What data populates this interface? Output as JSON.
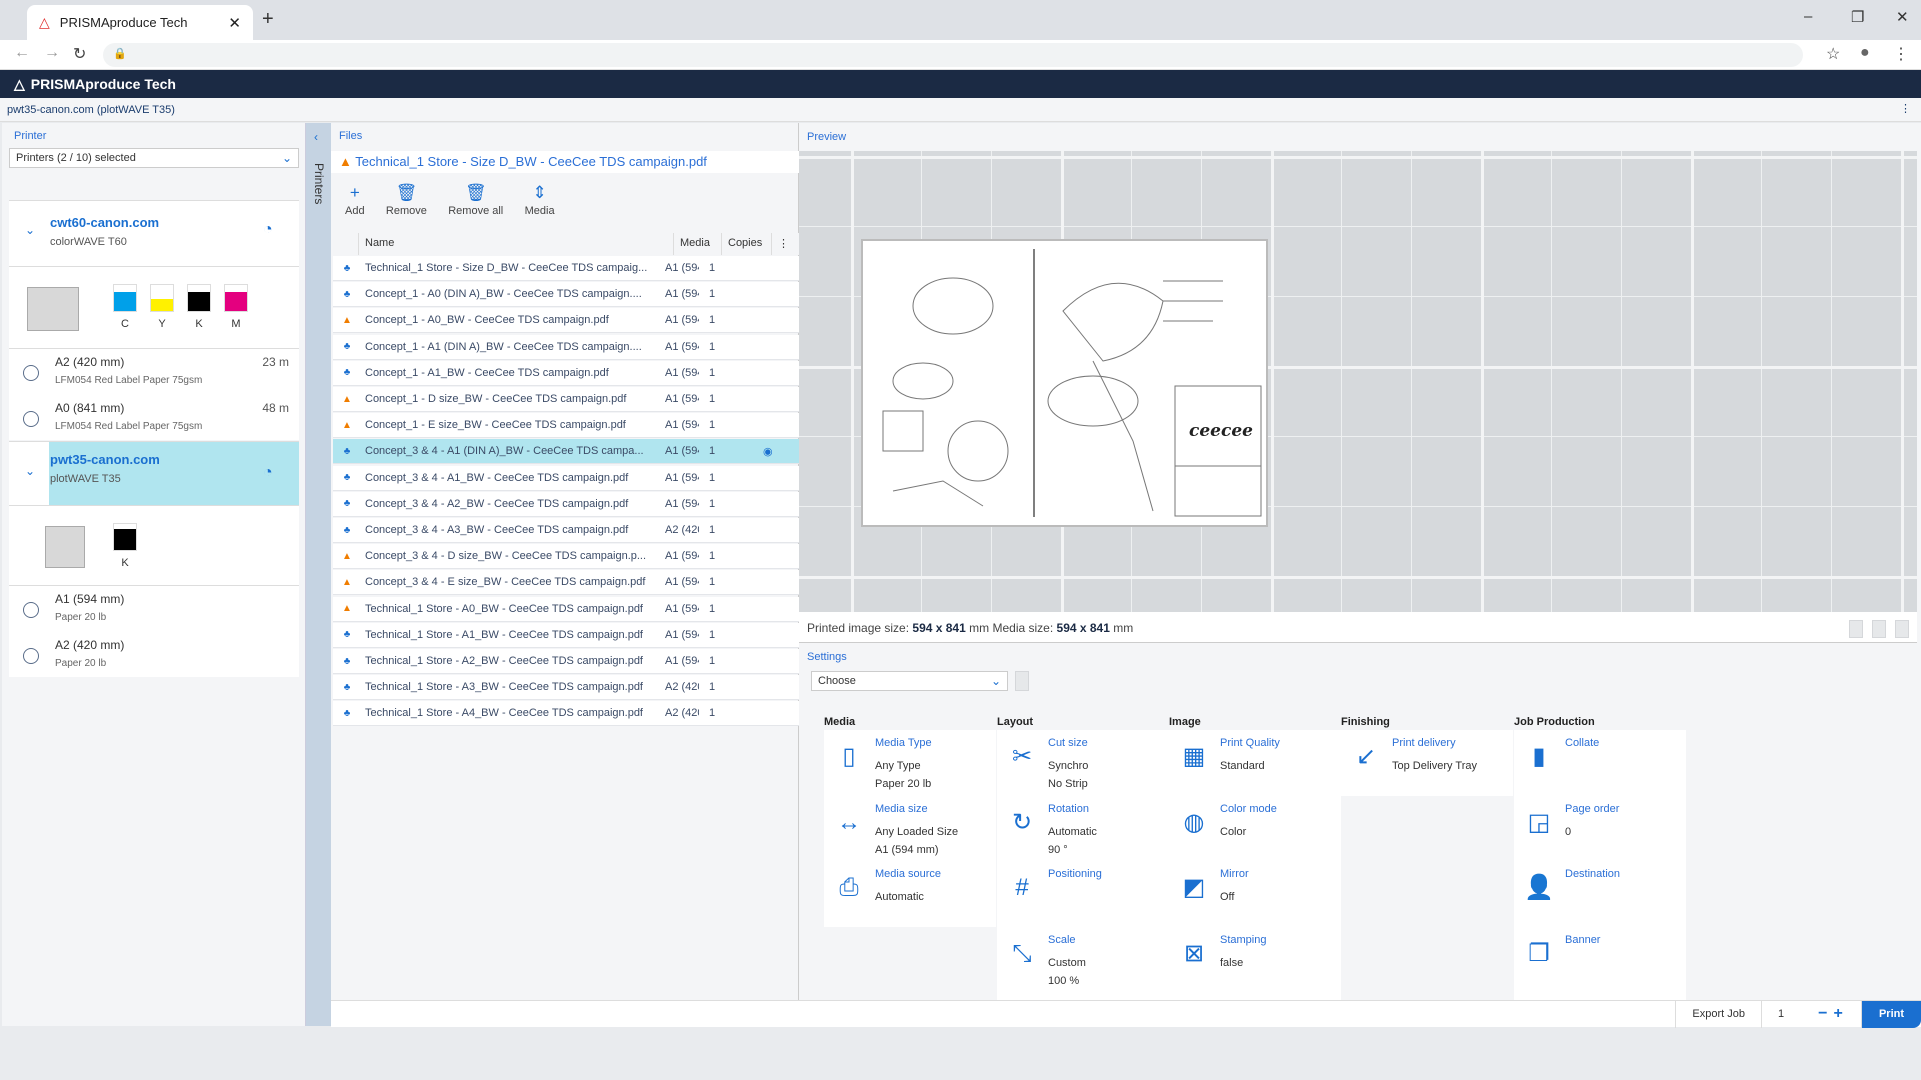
{
  "browser": {
    "tab_title": "PRISMAproduce Tech",
    "close": "✕",
    "new_tab": "+",
    "back": "←",
    "forward": "→",
    "reload": "↻",
    "lock": "🔒",
    "star": "☆",
    "menu": "⋮",
    "minimize": "–",
    "restore": "❐",
    "close_window": "✕"
  },
  "app": {
    "title": "PRISMAproduce Tech",
    "context": "pwt35-canon.com (plotWAVE T35)",
    "more": "⋮"
  },
  "printer_panel": {
    "label": "Printer",
    "selector": "Printers (2 / 10) selected",
    "tab": "Printers",
    "printers": [
      {
        "name": "cwt60-canon.com",
        "model": "colorWAVE T60",
        "inks": [
          {
            "label": "C",
            "color": "#00a0e9",
            "level": 0.75
          },
          {
            "label": "Y",
            "color": "#fff100",
            "level": 0.45
          },
          {
            "label": "K",
            "color": "#000000",
            "level": 0.75
          },
          {
            "label": "M",
            "color": "#e4007f",
            "level": 0.75
          }
        ],
        "media": [
          {
            "size": "A2 (420 mm)",
            "type": "LFM054 Red Label Paper 75gsm",
            "length": "23 m"
          },
          {
            "size": "A0 (841 mm)",
            "type": "LFM054 Red Label Paper 75gsm",
            "length": "48 m"
          }
        ]
      },
      {
        "name": "pwt35-canon.com",
        "model": "plotWAVE T35",
        "selected": true,
        "inks": [
          {
            "label": "K",
            "color": "#000000",
            "level": 0.8
          }
        ],
        "media": [
          {
            "size": "A1 (594 mm)",
            "type": "Paper 20 lb",
            "length": ""
          },
          {
            "size": "A2 (420 mm)",
            "type": "Paper 20 lb",
            "length": ""
          }
        ]
      }
    ]
  },
  "files": {
    "tab": "Files",
    "current_file": "Technical_1 Store - Size D_BW - CeeCee TDS campaign.pdf",
    "toolbar": {
      "add": "Add",
      "remove": "Remove",
      "remove_all": "Remove all",
      "media": "Media"
    },
    "columns": {
      "name": "Name",
      "media": "Media",
      "copies": "Copies",
      "more": "⋮"
    },
    "rows": [
      {
        "status": "job",
        "name": "Technical_1 Store - Size D_BW - CeeCee TDS campaig...",
        "media": "A1 (594",
        "copies": "1"
      },
      {
        "status": "job",
        "name": "Concept_1 - A0 (DIN A)_BW - CeeCee TDS campaign....",
        "media": "A1 (594",
        "copies": "1"
      },
      {
        "status": "warn",
        "name": "Concept_1 - A0_BW - CeeCee TDS campaign.pdf",
        "media": "A1 (594",
        "copies": "1"
      },
      {
        "status": "job",
        "name": "Concept_1 - A1 (DIN A)_BW - CeeCee TDS campaign....",
        "media": "A1 (594",
        "copies": "1"
      },
      {
        "status": "job",
        "name": "Concept_1 - A1_BW - CeeCee TDS campaign.pdf",
        "media": "A1 (594",
        "copies": "1"
      },
      {
        "status": "warn",
        "name": "Concept_1 - D size_BW - CeeCee TDS campaign.pdf",
        "media": "A1 (594",
        "copies": "1"
      },
      {
        "status": "warn",
        "name": "Concept_1 - E size_BW - CeeCee TDS campaign.pdf",
        "media": "A1 (594",
        "copies": "1"
      },
      {
        "status": "job",
        "name": "Concept_3 & 4 - A1 (DIN A)_BW - CeeCee TDS campa...",
        "media": "A1 (594",
        "copies": "1",
        "selected": true
      },
      {
        "status": "job",
        "name": "Concept_3 & 4 - A1_BW - CeeCee TDS campaign.pdf",
        "media": "A1 (594",
        "copies": "1"
      },
      {
        "status": "job",
        "name": "Concept_3 & 4 - A2_BW - CeeCee TDS campaign.pdf",
        "media": "A1 (594",
        "copies": "1"
      },
      {
        "status": "job",
        "name": "Concept_3 & 4 - A3_BW - CeeCee TDS campaign.pdf",
        "media": "A2 (420",
        "copies": "1"
      },
      {
        "status": "warn",
        "name": "Concept_3 & 4 - D size_BW - CeeCee TDS campaign.p...",
        "media": "A1 (594",
        "copies": "1"
      },
      {
        "status": "warn",
        "name": "Concept_3 & 4 - E size_BW - CeeCee TDS campaign.pdf",
        "media": "A1 (594",
        "copies": "1"
      },
      {
        "status": "warn",
        "name": "Technical_1 Store - A0_BW - CeeCee TDS campaign.pdf",
        "media": "A1 (594",
        "copies": "1"
      },
      {
        "status": "job",
        "name": "Technical_1 Store - A1_BW - CeeCee TDS campaign.pdf",
        "media": "A1 (594",
        "copies": "1"
      },
      {
        "status": "job",
        "name": "Technical_1 Store - A2_BW - CeeCee TDS campaign.pdf",
        "media": "A1 (594",
        "copies": "1"
      },
      {
        "status": "job",
        "name": "Technical_1 Store - A3_BW - CeeCee TDS campaign.pdf",
        "media": "A2 (420",
        "copies": "1"
      },
      {
        "status": "job",
        "name": "Technical_1 Store - A4_BW - CeeCee TDS campaign.pdf",
        "media": "A2 (420",
        "copies": "1"
      }
    ]
  },
  "preview": {
    "label": "Preview",
    "logo_text": "ceecee",
    "printed_label": "Printed image size:",
    "printed_value": "594 x 841",
    "unit1": "mm",
    "media_label": "Media size:",
    "media_value": "594 x 841",
    "unit2": "mm"
  },
  "settings": {
    "label": "Settings",
    "preset": "Choose",
    "groups": [
      {
        "title": "Media",
        "items": [
          {
            "icon": "media-type-icon",
            "g": "▯",
            "title": "Media Type",
            "v1": "Any Type",
            "v2": "Paper 20 lb"
          },
          {
            "icon": "media-size-icon",
            "g": "↔",
            "title": "Media size",
            "v1": "Any Loaded Size",
            "v2": "A1 (594 mm)"
          },
          {
            "icon": "media-source-icon",
            "g": "⎙",
            "title": "Media source",
            "v1": "Automatic",
            "v2": ""
          }
        ]
      },
      {
        "title": "Layout",
        "items": [
          {
            "icon": "cut-size-icon",
            "g": "✂",
            "title": "Cut size",
            "v1": "Synchro",
            "v2": "No Strip"
          },
          {
            "icon": "rotation-icon",
            "g": "↻",
            "title": "Rotation",
            "v1": "Automatic",
            "v2": "90 °"
          },
          {
            "icon": "positioning-icon",
            "g": "#",
            "title": "Positioning",
            "v1": "",
            "v2": ""
          },
          {
            "icon": "scale-icon",
            "g": "⤡",
            "title": "Scale",
            "v1": "Custom",
            "v2": "100 %"
          }
        ]
      },
      {
        "title": "Image",
        "items": [
          {
            "icon": "print-quality-icon",
            "g": "▦",
            "title": "Print Quality",
            "v1": "Standard",
            "v2": ""
          },
          {
            "icon": "color-mode-icon",
            "g": "◍",
            "title": "Color mode",
            "v1": "Color",
            "v2": ""
          },
          {
            "icon": "mirror-icon",
            "g": "◩",
            "title": "Mirror",
            "v1": "Off",
            "v2": ""
          },
          {
            "icon": "stamping-icon",
            "g": "⊠",
            "title": "Stamping",
            "v1": "false",
            "v2": ""
          }
        ]
      },
      {
        "title": "Finishing",
        "items": [
          {
            "icon": "print-delivery-icon",
            "g": "↙",
            "title": "Print delivery",
            "v1": "Top Delivery Tray",
            "v2": ""
          }
        ]
      },
      {
        "title": "Job Production",
        "items": [
          {
            "icon": "collate-icon",
            "g": "▮",
            "title": "Collate",
            "v1": "",
            "v2": ""
          },
          {
            "icon": "page-order-icon",
            "g": "◲",
            "title": "Page order",
            "v1": "0",
            "v2": ""
          },
          {
            "icon": "destination-icon",
            "g": "👤",
            "title": "Destination",
            "v1": "",
            "v2": ""
          },
          {
            "icon": "banner-icon",
            "g": "❐",
            "title": "Banner",
            "v1": "",
            "v2": ""
          }
        ]
      }
    ]
  },
  "footer": {
    "export": "Export Job",
    "copies": "1",
    "minus": "−",
    "plus": "+",
    "print": "Print"
  },
  "colors": {
    "accent": "#1a6fd0",
    "header": "#1b2a44",
    "selected": "#b0e5ef",
    "warning": "#f07d00"
  }
}
